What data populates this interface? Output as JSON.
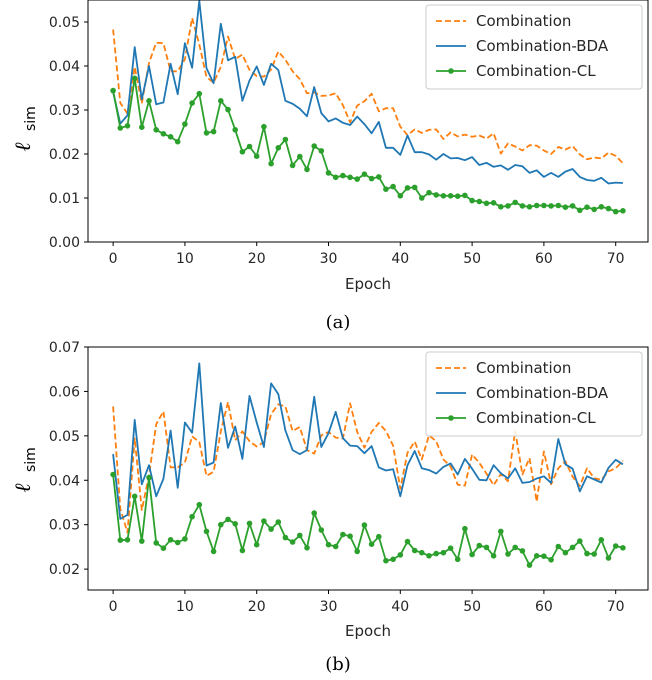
{
  "chart_data": [
    {
      "type": "line",
      "caption": "(a)",
      "xlabel": "Epoch",
      "ylabel_main": "ℓ",
      "ylabel_sub": "sim",
      "xlim": [
        -3.5,
        74.5
      ],
      "ylim": [
        0.0,
        0.055
      ],
      "xticks": [
        0,
        10,
        20,
        30,
        40,
        50,
        60,
        70
      ],
      "yticks": [
        0.0,
        0.01,
        0.02,
        0.03,
        0.04,
        0.05
      ],
      "ytick_labels": [
        "0.00",
        "0.01",
        "0.02",
        "0.03",
        "0.04",
        "0.05"
      ],
      "grid": false,
      "legend": "top-right",
      "x": [
        0,
        1,
        2,
        3,
        4,
        5,
        6,
        7,
        8,
        9,
        10,
        11,
        12,
        13,
        14,
        15,
        16,
        17,
        18,
        19,
        20,
        21,
        22,
        23,
        24,
        25,
        26,
        27,
        28,
        29,
        30,
        31,
        32,
        33,
        34,
        35,
        36,
        37,
        38,
        39,
        40,
        41,
        42,
        43,
        44,
        45,
        46,
        47,
        48,
        49,
        50,
        51,
        52,
        53,
        54,
        55,
        56,
        57,
        58,
        59,
        60,
        61,
        62,
        63,
        64,
        65,
        66,
        67,
        68,
        69,
        70,
        71
      ],
      "series": [
        {
          "name": "Combination",
          "style": "dashed",
          "color": "#ff7f0e",
          "values": [
            0.0483,
            0.0316,
            0.0292,
            0.0398,
            0.0315,
            0.0407,
            0.0453,
            0.0452,
            0.0388,
            0.0388,
            0.0415,
            0.0509,
            0.0449,
            0.0375,
            0.0362,
            0.0398,
            0.0467,
            0.0416,
            0.0426,
            0.0391,
            0.0377,
            0.0376,
            0.0392,
            0.0433,
            0.0414,
            0.0388,
            0.037,
            0.0338,
            0.034,
            0.0332,
            0.0333,
            0.0338,
            0.0311,
            0.0272,
            0.031,
            0.032,
            0.0337,
            0.0297,
            0.0304,
            0.0304,
            0.0262,
            0.0243,
            0.0256,
            0.0248,
            0.0255,
            0.0256,
            0.0234,
            0.0249,
            0.024,
            0.0244,
            0.0239,
            0.0242,
            0.0235,
            0.0247,
            0.0201,
            0.0224,
            0.0217,
            0.0208,
            0.022,
            0.0219,
            0.0208,
            0.02,
            0.0216,
            0.021,
            0.0218,
            0.0199,
            0.0188,
            0.0192,
            0.019,
            0.0203,
            0.0196,
            0.0179
          ]
        },
        {
          "name": "Combination-BDA",
          "style": "solid",
          "color": "#1f77b4",
          "values": [
            0.0341,
            0.0269,
            0.0288,
            0.0443,
            0.0324,
            0.04,
            0.0313,
            0.0317,
            0.0405,
            0.0336,
            0.0452,
            0.0396,
            0.0548,
            0.0395,
            0.0361,
            0.0496,
            0.0413,
            0.0421,
            0.0321,
            0.0367,
            0.0399,
            0.0357,
            0.0405,
            0.0391,
            0.0321,
            0.0314,
            0.0303,
            0.0286,
            0.0352,
            0.0293,
            0.0274,
            0.0281,
            0.0271,
            0.0266,
            0.0285,
            0.0268,
            0.0247,
            0.0273,
            0.0214,
            0.0214,
            0.0198,
            0.0242,
            0.0204,
            0.0204,
            0.0199,
            0.0187,
            0.02,
            0.019,
            0.0191,
            0.0186,
            0.0193,
            0.0175,
            0.018,
            0.0171,
            0.0174,
            0.0164,
            0.0175,
            0.0172,
            0.0157,
            0.0163,
            0.0148,
            0.0157,
            0.0148,
            0.016,
            0.0166,
            0.0148,
            0.0141,
            0.0139,
            0.0146,
            0.0133,
            0.0135,
            0.0134
          ]
        },
        {
          "name": "Combination-CL",
          "style": "solid-markers",
          "color": "#2ca02c",
          "values": [
            0.0344,
            0.0259,
            0.0264,
            0.0372,
            0.0261,
            0.0321,
            0.0255,
            0.0246,
            0.0239,
            0.0228,
            0.0268,
            0.0316,
            0.0337,
            0.0248,
            0.0251,
            0.0321,
            0.0301,
            0.0255,
            0.0205,
            0.0217,
            0.0195,
            0.0262,
            0.0178,
            0.0214,
            0.0233,
            0.0174,
            0.0194,
            0.0165,
            0.0218,
            0.0207,
            0.0157,
            0.0147,
            0.0151,
            0.0147,
            0.0143,
            0.0154,
            0.0144,
            0.0148,
            0.012,
            0.0126,
            0.0105,
            0.0123,
            0.0124,
            0.01,
            0.0112,
            0.0107,
            0.0105,
            0.0105,
            0.0104,
            0.0106,
            0.0094,
            0.0092,
            0.0088,
            0.0089,
            0.008,
            0.0082,
            0.009,
            0.0082,
            0.008,
            0.0083,
            0.0083,
            0.0082,
            0.0083,
            0.0079,
            0.0082,
            0.0072,
            0.0079,
            0.0074,
            0.008,
            0.0076,
            0.0069,
            0.0071
          ]
        }
      ]
    },
    {
      "type": "line",
      "caption": "(b)",
      "xlabel": "Epoch",
      "ylabel_main": "ℓ",
      "ylabel_sub": "sim",
      "xlim": [
        -3.5,
        74.5
      ],
      "ylim": [
        0.0153,
        0.07
      ],
      "xticks": [
        0,
        10,
        20,
        30,
        40,
        50,
        60,
        70
      ],
      "yticks": [
        0.02,
        0.03,
        0.04,
        0.05,
        0.06,
        0.07
      ],
      "ytick_labels": [
        "0.02",
        "0.03",
        "0.04",
        "0.05",
        "0.06",
        "0.07"
      ],
      "grid": false,
      "legend": "top-right",
      "x": [
        0,
        1,
        2,
        3,
        4,
        5,
        6,
        7,
        8,
        9,
        10,
        11,
        12,
        13,
        14,
        15,
        16,
        17,
        18,
        19,
        20,
        21,
        22,
        23,
        24,
        25,
        26,
        27,
        28,
        29,
        30,
        31,
        32,
        33,
        34,
        35,
        36,
        37,
        38,
        39,
        40,
        41,
        42,
        43,
        44,
        45,
        46,
        47,
        48,
        49,
        50,
        51,
        52,
        53,
        54,
        55,
        56,
        57,
        58,
        59,
        60,
        61,
        62,
        63,
        64,
        65,
        66,
        67,
        68,
        69,
        70,
        71
      ],
      "series": [
        {
          "name": "Combination",
          "style": "dashed",
          "color": "#ff7f0e",
          "values": [
            0.0566,
            0.0336,
            0.0282,
            0.0494,
            0.0333,
            0.0411,
            0.0526,
            0.0555,
            0.0429,
            0.0429,
            0.044,
            0.0499,
            0.0486,
            0.041,
            0.0419,
            0.051,
            0.0576,
            0.049,
            0.051,
            0.0488,
            0.0476,
            0.0486,
            0.0549,
            0.0571,
            0.0566,
            0.0511,
            0.052,
            0.0468,
            0.046,
            0.0501,
            0.0509,
            0.0496,
            0.0494,
            0.0573,
            0.0509,
            0.0473,
            0.0509,
            0.0529,
            0.0511,
            0.0478,
            0.0381,
            0.0462,
            0.0487,
            0.0447,
            0.0501,
            0.0488,
            0.0447,
            0.0431,
            0.039,
            0.0388,
            0.0458,
            0.0439,
            0.0415,
            0.0389,
            0.0414,
            0.0398,
            0.0511,
            0.0413,
            0.045,
            0.0352,
            0.0465,
            0.0391,
            0.0427,
            0.0443,
            0.0408,
            0.0387,
            0.0427,
            0.0405,
            0.0401,
            0.042,
            0.0427,
            0.0444
          ]
        },
        {
          "name": "Combination-BDA",
          "style": "solid",
          "color": "#1f77b4",
          "values": [
            0.0459,
            0.0313,
            0.0322,
            0.0536,
            0.0391,
            0.0434,
            0.0364,
            0.0403,
            0.0512,
            0.0383,
            0.053,
            0.0507,
            0.0663,
            0.0433,
            0.044,
            0.0574,
            0.0473,
            0.0521,
            0.0448,
            0.059,
            0.053,
            0.0475,
            0.0618,
            0.0594,
            0.0512,
            0.0468,
            0.0459,
            0.0468,
            0.0588,
            0.0475,
            0.0506,
            0.0554,
            0.0495,
            0.0478,
            0.0477,
            0.0461,
            0.0477,
            0.0429,
            0.0422,
            0.0425,
            0.0364,
            0.0434,
            0.0466,
            0.0427,
            0.0423,
            0.0415,
            0.043,
            0.0438,
            0.0413,
            0.0448,
            0.0426,
            0.0401,
            0.04,
            0.0434,
            0.0416,
            0.0404,
            0.0427,
            0.0394,
            0.0396,
            0.0404,
            0.0409,
            0.0394,
            0.0493,
            0.0436,
            0.0426,
            0.0375,
            0.0409,
            0.0402,
            0.0395,
            0.0428,
            0.0446,
            0.0436
          ]
        },
        {
          "name": "Combination-CL",
          "style": "solid-markers",
          "color": "#2ca02c",
          "values": [
            0.0413,
            0.0265,
            0.0266,
            0.0364,
            0.0263,
            0.0406,
            0.0259,
            0.0247,
            0.0266,
            0.026,
            0.0268,
            0.0318,
            0.0345,
            0.0285,
            0.024,
            0.03,
            0.0312,
            0.0302,
            0.0242,
            0.0303,
            0.0255,
            0.0308,
            0.029,
            0.0306,
            0.0271,
            0.0261,
            0.0276,
            0.0248,
            0.0326,
            0.0288,
            0.0255,
            0.0251,
            0.0278,
            0.0274,
            0.024,
            0.0299,
            0.0256,
            0.0273,
            0.0219,
            0.0222,
            0.0232,
            0.0262,
            0.0242,
            0.0237,
            0.023,
            0.0235,
            0.0237,
            0.0247,
            0.0222,
            0.0291,
            0.0233,
            0.0253,
            0.0249,
            0.023,
            0.0285,
            0.0234,
            0.0249,
            0.0241,
            0.0209,
            0.023,
            0.0229,
            0.0221,
            0.0251,
            0.0237,
            0.0249,
            0.0263,
            0.0235,
            0.0234,
            0.0266,
            0.0225,
            0.0252,
            0.0248
          ]
        }
      ]
    }
  ]
}
